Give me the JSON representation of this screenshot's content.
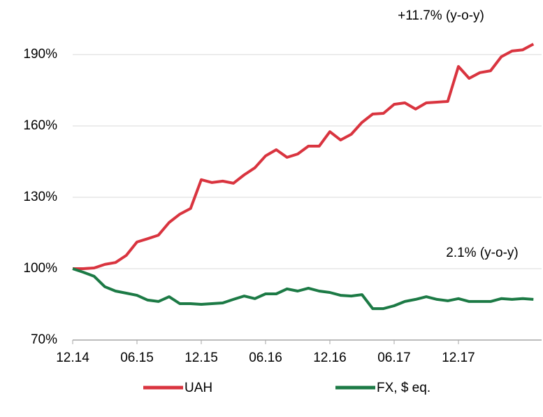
{
  "chart_data": {
    "type": "line",
    "annotations": [
      "+11.7% (y-o-y)",
      "2.1% (y-o-y)"
    ],
    "categories": [
      "12.14",
      null,
      null,
      null,
      null,
      null,
      "06.15",
      null,
      null,
      null,
      null,
      null,
      "12.15",
      null,
      null,
      null,
      null,
      null,
      "06.16",
      null,
      null,
      null,
      null,
      null,
      "12.16",
      null,
      null,
      null,
      null,
      null,
      "06.17",
      null,
      null,
      null,
      null,
      null,
      "12.17",
      null,
      null,
      null,
      null,
      null,
      null,
      null
    ],
    "series": [
      {
        "name": "UAH",
        "color": "#d9343f",
        "values": [
          100,
          100,
          100.3,
          101.8,
          102.6,
          105.6,
          111.2,
          112.6,
          114.1,
          119.4,
          122.9,
          125.3,
          137.4,
          136.2,
          136.8,
          135.9,
          139.4,
          142.4,
          147.4,
          150,
          146.8,
          148.2,
          151.5,
          151.5,
          157.6,
          154.1,
          156.5,
          161.5,
          165,
          165.3,
          169.1,
          169.7,
          167.1,
          169.7,
          170,
          170.3,
          185,
          180,
          182.4,
          183.2,
          189.1,
          191.5,
          192,
          194.4
        ]
      },
      {
        "name": "FX, $ eq.",
        "color": "#1c7a45",
        "values": [
          100,
          98.5,
          96.8,
          92.4,
          90.6,
          89.7,
          88.8,
          86.8,
          86.2,
          88.2,
          85.3,
          85.3,
          85,
          85.3,
          85.6,
          87.1,
          88.5,
          87.4,
          89.4,
          89.4,
          91.5,
          90.6,
          91.8,
          90.6,
          90,
          88.8,
          88.5,
          89.1,
          83.2,
          83.2,
          84.4,
          86.2,
          87.1,
          88.2,
          87.1,
          86.5,
          87.4,
          86.2,
          86.2,
          86.2,
          87.4,
          87.1,
          87.4,
          87.1
        ]
      }
    ],
    "ylim": [
      70,
      200
    ],
    "yticks": [
      {
        "value": 70,
        "label": "70%"
      },
      {
        "value": 100,
        "label": "100%"
      },
      {
        "value": 130,
        "label": "130%"
      },
      {
        "value": 160,
        "label": "160%"
      },
      {
        "value": 190,
        "label": "190%"
      }
    ],
    "grid": true,
    "legend": "bottom"
  }
}
